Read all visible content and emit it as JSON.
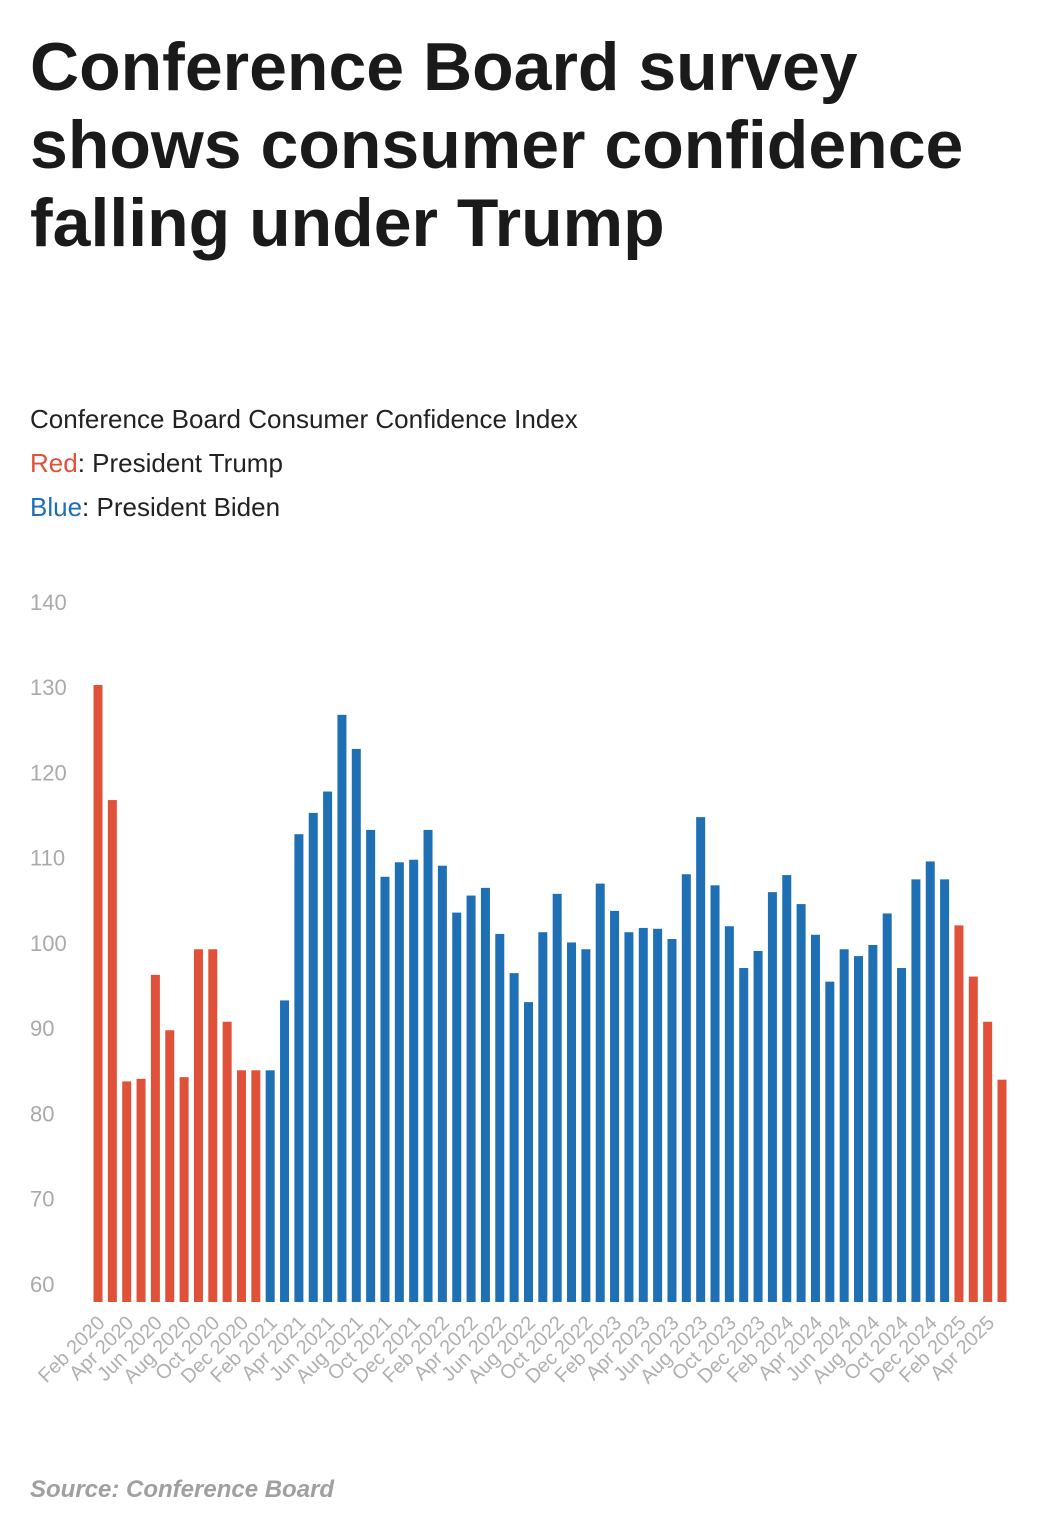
{
  "chart_data": {
    "type": "bar",
    "title": "Conference Board survey shows consumer confidence falling under Trump",
    "subtitle": "Conference Board Consumer Confidence Index",
    "legend": [
      {
        "label": "Red",
        "text": "President Trump",
        "color": "#e0513a"
      },
      {
        "label": "Blue",
        "text": "President Biden",
        "color": "#1f6fb5"
      }
    ],
    "source": "Source: Conference Board",
    "categories": [
      "Feb 2020",
      null,
      "Apr 2020",
      null,
      "Jun 2020",
      null,
      "Aug 2020",
      null,
      "Oct 2020",
      null,
      "Dec 2020",
      null,
      "Feb 2021",
      null,
      "Apr 2021",
      null,
      "Jun 2021",
      null,
      "Aug 2021",
      null,
      "Oct 2021",
      null,
      "Dec 2021",
      null,
      "Feb 2022",
      null,
      "Apr 2022",
      null,
      "Jun 2022",
      null,
      "Aug 2022",
      null,
      "Oct 2022",
      null,
      "Dec 2022",
      null,
      "Feb 2023",
      null,
      "Apr 2023",
      null,
      "Jun 2023",
      null,
      "Aug 2023",
      null,
      "Oct 2023",
      null,
      "Dec 2023",
      null,
      "Feb 2024",
      null,
      "Apr 2024",
      null,
      "Jun 2024",
      null,
      "Aug 2024",
      null,
      "Oct 2024",
      null,
      "Dec 2024",
      null,
      "Feb 2025",
      null,
      "Apr 2025",
      null
    ],
    "values": [
      130.5,
      117,
      84,
      84.3,
      96.5,
      90,
      84.5,
      99.5,
      99.5,
      91,
      85.3,
      85.3,
      85.3,
      93.5,
      113,
      115.5,
      118,
      127,
      123,
      113.5,
      108,
      109.7,
      110,
      113.5,
      109.3,
      103.8,
      105.8,
      106.7,
      101.3,
      96.7,
      93.3,
      101.5,
      106,
      100.3,
      99.5,
      107.2,
      104,
      101.5,
      102,
      101.9,
      100.7,
      108.3,
      115,
      107,
      102.2,
      97.3,
      99.3,
      106.2,
      108.2,
      104.8,
      101.2,
      95.7,
      99.5,
      98.7,
      100,
      103.7,
      97.3,
      107.7,
      109.8,
      107.7,
      102.3,
      96.3,
      91,
      84.2
    ],
    "bar_colors": [
      "#e0513a",
      "#e0513a",
      "#e0513a",
      "#e0513a",
      "#e0513a",
      "#e0513a",
      "#e0513a",
      "#e0513a",
      "#e0513a",
      "#e0513a",
      "#e0513a",
      "#e0513a",
      "#1f6fb5",
      "#1f6fb5",
      "#1f6fb5",
      "#1f6fb5",
      "#1f6fb5",
      "#1f6fb5",
      "#1f6fb5",
      "#1f6fb5",
      "#1f6fb5",
      "#1f6fb5",
      "#1f6fb5",
      "#1f6fb5",
      "#1f6fb5",
      "#1f6fb5",
      "#1f6fb5",
      "#1f6fb5",
      "#1f6fb5",
      "#1f6fb5",
      "#1f6fb5",
      "#1f6fb5",
      "#1f6fb5",
      "#1f6fb5",
      "#1f6fb5",
      "#1f6fb5",
      "#1f6fb5",
      "#1f6fb5",
      "#1f6fb5",
      "#1f6fb5",
      "#1f6fb5",
      "#1f6fb5",
      "#1f6fb5",
      "#1f6fb5",
      "#1f6fb5",
      "#1f6fb5",
      "#1f6fb5",
      "#1f6fb5",
      "#1f6fb5",
      "#1f6fb5",
      "#1f6fb5",
      "#1f6fb5",
      "#1f6fb5",
      "#1f6fb5",
      "#1f6fb5",
      "#1f6fb5",
      "#1f6fb5",
      "#1f6fb5",
      "#1f6fb5",
      "#1f6fb5",
      "#e0513a",
      "#e0513a",
      "#e0513a",
      "#e0513a"
    ],
    "ylim": [
      60,
      140
    ],
    "yticks": [
      60,
      70,
      80,
      90,
      100,
      110,
      120,
      130,
      140
    ],
    "grid": false
  }
}
